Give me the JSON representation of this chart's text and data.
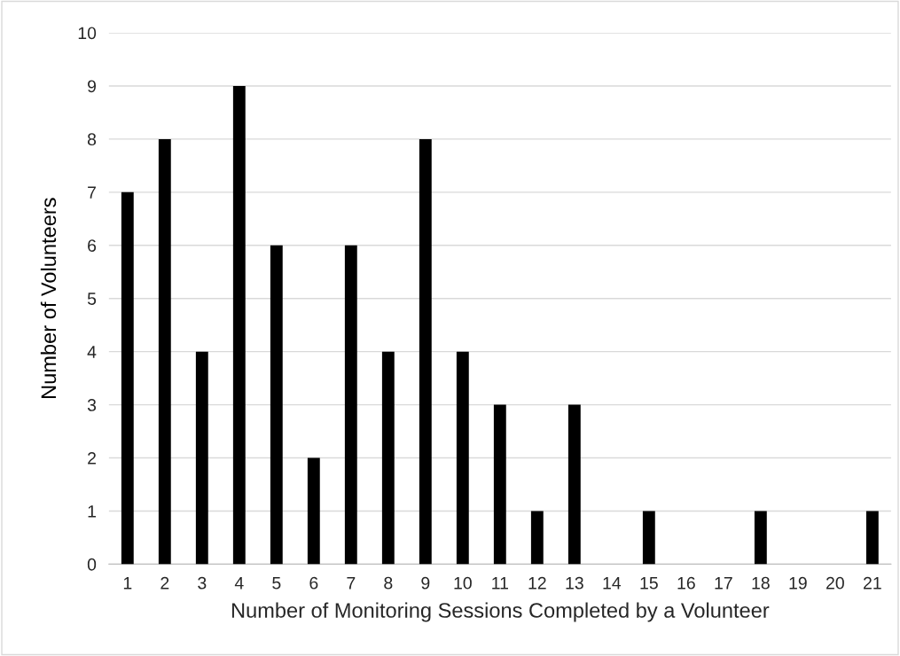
{
  "chart_data": {
    "type": "bar",
    "xlabel": "Number of Monitoring Sessions Completed by a Volunteer",
    "ylabel": "Number of Volunteers",
    "categories": [
      "1",
      "2",
      "3",
      "4",
      "5",
      "6",
      "7",
      "8",
      "9",
      "10",
      "11",
      "12",
      "13",
      "14",
      "15",
      "16",
      "17",
      "18",
      "19",
      "20",
      "21"
    ],
    "values": [
      7,
      8,
      4,
      9,
      6,
      2,
      6,
      4,
      8,
      4,
      3,
      1,
      3,
      0,
      1,
      0,
      0,
      1,
      0,
      0,
      1
    ],
    "color": "#000000",
    "ylim": [
      0,
      10
    ],
    "yticks": [
      0,
      1,
      2,
      3,
      4,
      5,
      6,
      7,
      8,
      9,
      10
    ],
    "grid": "y"
  }
}
